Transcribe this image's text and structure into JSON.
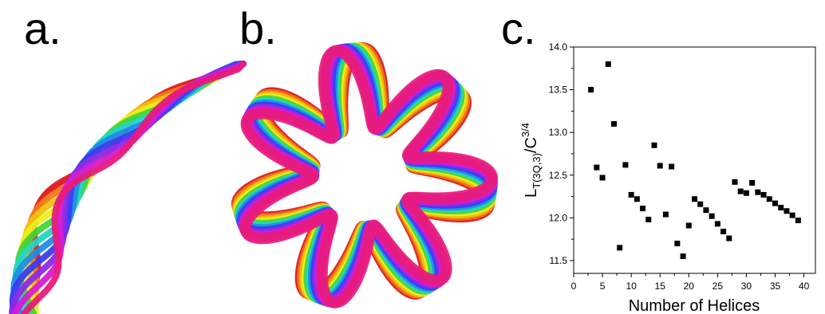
{
  "figure": {
    "labels": {
      "a": "a.",
      "b": "b.",
      "c": "c."
    }
  },
  "palette": [
    "#e0161c",
    "#f07a12",
    "#f2c011",
    "#eaf01c",
    "#41d43a",
    "#22d6c4",
    "#1e8de8",
    "#3a3cf2",
    "#8a2be8",
    "#d61bd6",
    "#e81b7a"
  ],
  "chart_data": {
    "type": "scatter",
    "title": "",
    "xlabel": "Number of Helices",
    "ylabel_main": "L",
    "ylabel_sub": "T(3Q,3)",
    "ylabel_mid": "/C",
    "ylabel_sup": "3/4",
    "xlim": [
      0,
      42
    ],
    "ylim": [
      11.35,
      14.0
    ],
    "xticks": [
      "0",
      "5",
      "10",
      "15",
      "20",
      "25",
      "30",
      "35",
      "40"
    ],
    "yticks": [
      "11.5",
      "12.0",
      "12.5",
      "13.0",
      "13.5",
      "14.0"
    ],
    "grid": false,
    "series": [
      {
        "marker": "square",
        "color": "#000000",
        "x": [
          3,
          4,
          5,
          6,
          7,
          8,
          9,
          10,
          11,
          12,
          13,
          14,
          15,
          16,
          17,
          18,
          19,
          20,
          21,
          22,
          23,
          24,
          25,
          26,
          27,
          28,
          29,
          30,
          31,
          32,
          33,
          34,
          35,
          36,
          37,
          38,
          39
        ],
        "y": [
          13.5,
          12.59,
          12.47,
          13.8,
          13.1,
          11.65,
          12.62,
          12.27,
          12.22,
          12.11,
          11.98,
          12.85,
          12.61,
          12.04,
          12.6,
          11.7,
          11.55,
          11.91,
          12.22,
          12.16,
          12.09,
          12.02,
          11.93,
          11.84,
          11.76,
          12.42,
          12.31,
          12.29,
          12.41,
          12.3,
          12.27,
          12.22,
          12.17,
          12.12,
          12.08,
          12.03,
          11.97
        ]
      }
    ]
  }
}
